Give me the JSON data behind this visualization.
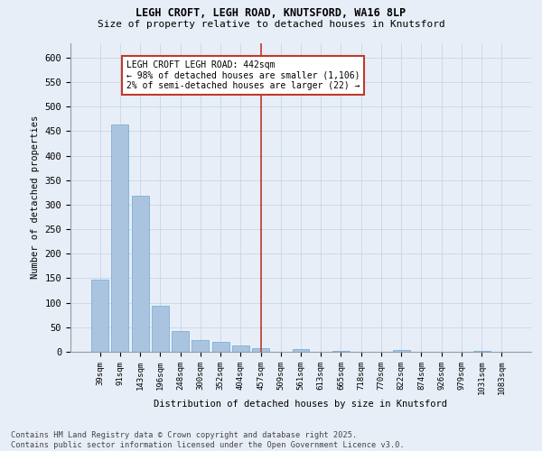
{
  "title1": "LEGH CROFT, LEGH ROAD, KNUTSFORD, WA16 8LP",
  "title2": "Size of property relative to detached houses in Knutsford",
  "xlabel": "Distribution of detached houses by size in Knutsford",
  "ylabel": "Number of detached properties",
  "categories": [
    "39sqm",
    "91sqm",
    "143sqm",
    "196sqm",
    "248sqm",
    "300sqm",
    "352sqm",
    "404sqm",
    "457sqm",
    "509sqm",
    "561sqm",
    "613sqm",
    "665sqm",
    "718sqm",
    "770sqm",
    "822sqm",
    "874sqm",
    "926sqm",
    "979sqm",
    "1031sqm",
    "1083sqm"
  ],
  "values": [
    148,
    463,
    319,
    94,
    42,
    23,
    21,
    13,
    8,
    0,
    6,
    0,
    2,
    0,
    0,
    3,
    0,
    0,
    0,
    2,
    0
  ],
  "bar_color": "#aac4e0",
  "bar_edge_color": "#6aaad4",
  "vline_x": 8,
  "vline_color": "#c0392b",
  "annotation_title": "LEGH CROFT LEGH ROAD: 442sqm",
  "annotation_line2": "← 98% of detached houses are smaller (1,106)",
  "annotation_line3": "2% of semi-detached houses are larger (22) →",
  "annotation_box_color": "#ffffff",
  "annotation_box_edge": "#c0392b",
  "ylim": [
    0,
    630
  ],
  "yticks": [
    0,
    50,
    100,
    150,
    200,
    250,
    300,
    350,
    400,
    450,
    500,
    550,
    600
  ],
  "grid_color": "#c8d4e8",
  "background_color": "#e8eef8",
  "footer1": "Contains HM Land Registry data © Crown copyright and database right 2025.",
  "footer2": "Contains public sector information licensed under the Open Government Licence v3.0."
}
